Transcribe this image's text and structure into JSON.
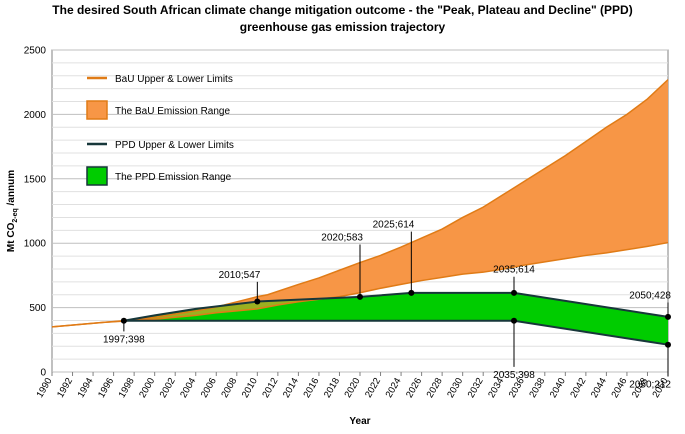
{
  "chart_data": {
    "type": "area",
    "title_line1": "The desired South African climate change mitigation outcome - the \"Peak, Plateau and Decline\" (PPD)",
    "title_line2": "greenhouse gas emission trajectory",
    "xlabel": "Year",
    "ylabel_main": "Mt CO",
    "ylabel_sub": "2-eq",
    "ylabel_tail": " /annum",
    "xlim": [
      1990,
      2050
    ],
    "ylim": [
      0,
      2500
    ],
    "y_ticks": [
      "0",
      "500",
      "1000",
      "1500",
      "2000",
      "2500"
    ],
    "x_ticks": [
      "1990",
      "1992",
      "1994",
      "1996",
      "1998",
      "2000",
      "2002",
      "2004",
      "2006",
      "2008",
      "2010",
      "2012",
      "2014",
      "2016",
      "2018",
      "2020",
      "2022",
      "2024",
      "2026",
      "2028",
      "2030",
      "2032",
      "2034",
      "2036",
      "2038",
      "2040",
      "2042",
      "2044",
      "2046",
      "2048",
      "2050"
    ],
    "colors": {
      "bau_line": "#E07B16",
      "bau_fill": "#F79646",
      "ppd_line": "#17373A",
      "ppd_fill": "#00CC00",
      "overlap_fill": "#9BB020",
      "grid": "#BFBFBF"
    },
    "legend": [
      {
        "label": "BaU Upper & Lower Limits",
        "kind": "line",
        "color_key": "bau_line"
      },
      {
        "label": "The BaU Emission Range",
        "kind": "box",
        "color_key": "bau_fill"
      },
      {
        "label": "PPD Upper & Lower Limits",
        "kind": "line",
        "color_key": "ppd_line"
      },
      {
        "label": "The PPD Emission Range",
        "kind": "box",
        "color_key": "ppd_fill"
      }
    ],
    "series": [
      {
        "name": "BaU Upper Limit",
        "points": [
          [
            1990,
            350
          ],
          [
            1995,
            385
          ],
          [
            1998,
            405
          ],
          [
            2000,
            425
          ],
          [
            2002,
            450
          ],
          [
            2004,
            475
          ],
          [
            2006,
            505
          ],
          [
            2008,
            545
          ],
          [
            2010,
            585
          ],
          [
            2011,
            600
          ],
          [
            2014,
            680
          ],
          [
            2016,
            730
          ],
          [
            2018,
            790
          ],
          [
            2020,
            850
          ],
          [
            2022,
            905
          ],
          [
            2024,
            970
          ],
          [
            2026,
            1040
          ],
          [
            2028,
            1110
          ],
          [
            2030,
            1200
          ],
          [
            2032,
            1280
          ],
          [
            2034,
            1380
          ],
          [
            2036,
            1480
          ],
          [
            2038,
            1580
          ],
          [
            2040,
            1680
          ],
          [
            2042,
            1790
          ],
          [
            2044,
            1900
          ],
          [
            2046,
            2000
          ],
          [
            2048,
            2120
          ],
          [
            2050,
            2270
          ]
        ]
      },
      {
        "name": "BaU Lower Limit",
        "points": [
          [
            1990,
            350
          ],
          [
            1995,
            385
          ],
          [
            1998,
            400
          ],
          [
            2000,
            410
          ],
          [
            2002,
            425
          ],
          [
            2004,
            440
          ],
          [
            2006,
            460
          ],
          [
            2008,
            475
          ],
          [
            2010,
            490
          ],
          [
            2012,
            520
          ],
          [
            2014,
            545
          ],
          [
            2016,
            565
          ],
          [
            2018,
            585
          ],
          [
            2020,
            615
          ],
          [
            2022,
            650
          ],
          [
            2024,
            680
          ],
          [
            2026,
            710
          ],
          [
            2028,
            735
          ],
          [
            2030,
            760
          ],
          [
            2032,
            775
          ],
          [
            2034,
            800
          ],
          [
            2036,
            830
          ],
          [
            2038,
            855
          ],
          [
            2040,
            880
          ],
          [
            2042,
            905
          ],
          [
            2044,
            925
          ],
          [
            2046,
            950
          ],
          [
            2048,
            975
          ],
          [
            2050,
            1005
          ]
        ]
      },
      {
        "name": "PPD Upper Limit",
        "points": [
          [
            1997,
            398
          ],
          [
            2000,
            440
          ],
          [
            2004,
            490
          ],
          [
            2010,
            547
          ],
          [
            2020,
            583
          ],
          [
            2025,
            614
          ],
          [
            2035,
            614
          ],
          [
            2050,
            428
          ]
        ]
      },
      {
        "name": "PPD Lower Limit",
        "points": [
          [
            1997,
            398
          ],
          [
            2035,
            398
          ],
          [
            2050,
            212
          ]
        ]
      }
    ],
    "annotations": [
      {
        "label": "1997;398",
        "x": 1997,
        "y": 398,
        "label_y": 315,
        "anchor": "middle"
      },
      {
        "label": "2010;547",
        "x": 2010,
        "y": 547,
        "label_y": 700,
        "anchor": "end"
      },
      {
        "label": "2020;583",
        "x": 2020,
        "y": 583,
        "label_y": 990,
        "anchor": "end"
      },
      {
        "label": "2025;614",
        "x": 2025,
        "y": 614,
        "label_y": 1090,
        "anchor": "end"
      },
      {
        "label": "2035;614",
        "x": 2035,
        "y": 614,
        "label_y": 740,
        "anchor": "middle"
      },
      {
        "label": "2035;398",
        "x": 2035,
        "y": 398,
        "label_y": 40,
        "anchor": "middle"
      },
      {
        "label": "2050;428",
        "x": 2050,
        "y": 428,
        "label_y": 540,
        "anchor": "end"
      },
      {
        "label": "2050;212",
        "x": 2050,
        "y": 212,
        "label_y": -35,
        "anchor": "end"
      }
    ]
  }
}
